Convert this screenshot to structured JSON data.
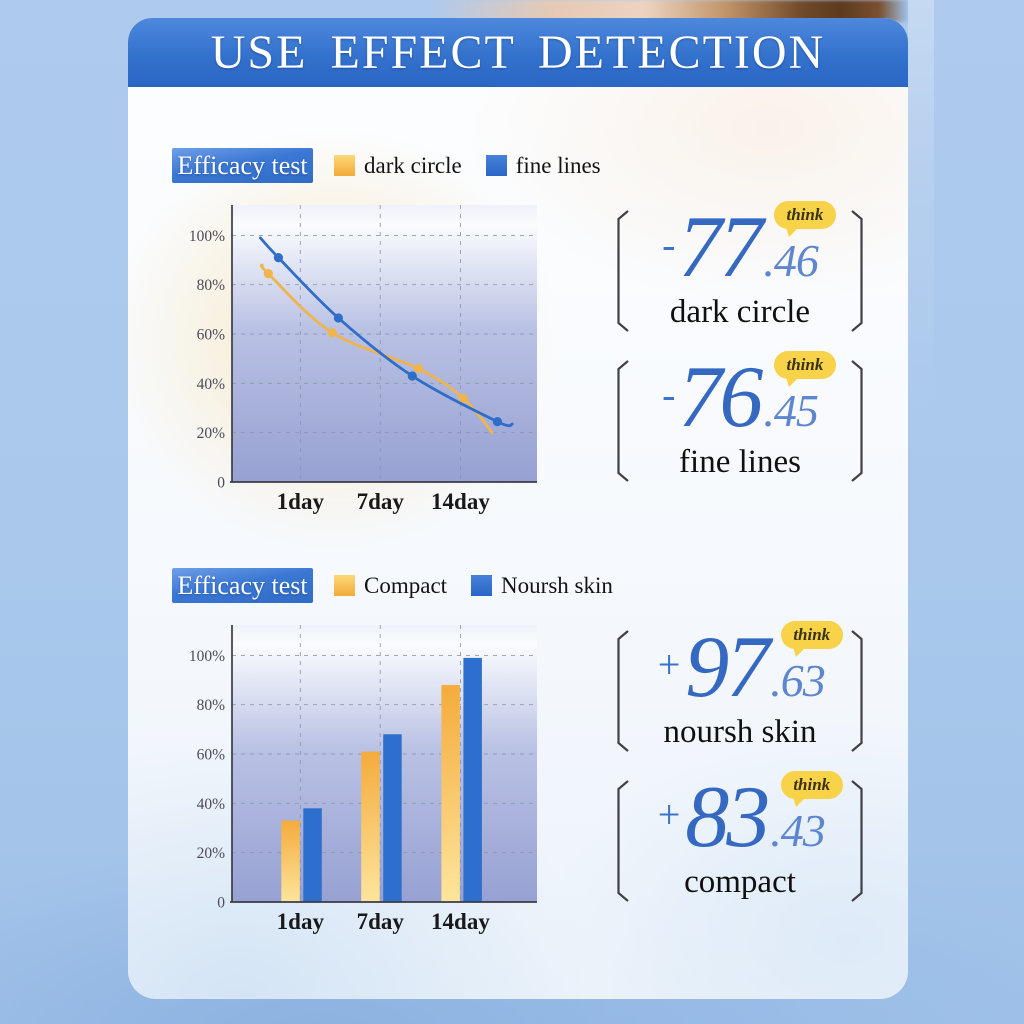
{
  "page_title": "USE EFFECT DETECTION",
  "colors": {
    "banner_blue": "#3372cd",
    "accent_blue": "#2e6ec9",
    "accent_yellow": "#f3b74a",
    "number_blue": "#3568c0",
    "badge_yellow": "#f8d34a",
    "page_bg": "#aac8ec"
  },
  "sections": [
    {
      "badge_label": "Efficacy test",
      "legend": [
        {
          "label": "dark circle",
          "color": "#f3b74a"
        },
        {
          "label": "fine lines",
          "color": "#2e6ec9"
        }
      ],
      "stats": [
        {
          "sign": "-",
          "integer": "77",
          "decimal": ".46",
          "badge": "think",
          "label": "dark circle"
        },
        {
          "sign": "-",
          "integer": "76",
          "decimal": ".45",
          "badge": "think",
          "label": "fine lines"
        }
      ]
    },
    {
      "badge_label": "Efficacy test",
      "legend": [
        {
          "label": "Compact",
          "color": "#f3b74a"
        },
        {
          "label": "Noursh skin",
          "color": "#2e6ec9"
        }
      ],
      "stats": [
        {
          "sign": "+",
          "integer": "97",
          "decimal": ".63",
          "badge": "think",
          "label": "noursh skin"
        },
        {
          "sign": "+",
          "integer": "83",
          "decimal": ".43",
          "badge": "think",
          "label": "compact"
        }
      ]
    }
  ],
  "chart_data": [
    {
      "type": "line",
      "title": "Efficacy test",
      "x_ticks": [
        "1day",
        "7day",
        "14day"
      ],
      "grid_x": [
        0.224,
        0.486,
        0.749
      ],
      "y_ticks": [
        {
          "label": "100%",
          "value": 100
        },
        {
          "label": "80%",
          "value": 80
        },
        {
          "label": "60%",
          "value": 60
        },
        {
          "label": "40%",
          "value": 40
        },
        {
          "label": "20%",
          "value": 20
        },
        {
          "label": "0",
          "value": 0
        }
      ],
      "ylim": [
        0,
        112
      ],
      "grid": "dashed",
      "legend_position": "top",
      "series": [
        {
          "name": "dark circle",
          "color": "#efb44b",
          "points": [
            [
              0.099,
              88,
              0
            ],
            [
              0.119,
              84.5,
              1
            ],
            [
              0.329,
              60.5,
              1
            ],
            [
              0.611,
              46,
              1
            ],
            [
              0.758,
              34,
              1
            ],
            [
              0.853,
              20,
              0
            ]
          ]
        },
        {
          "name": "fine lines",
          "color": "#2e6ec9",
          "points": [
            [
              0.093,
              99,
              0
            ],
            [
              0.152,
              91,
              1
            ],
            [
              0.349,
              66.5,
              1
            ],
            [
              0.591,
              43,
              1
            ],
            [
              0.87,
              24.5,
              1
            ],
            [
              0.919,
              23.5,
              0
            ]
          ]
        }
      ],
      "summary": [
        {
          "change": "-77.46",
          "metric": "dark circle"
        },
        {
          "change": "-76.45",
          "metric": "fine lines"
        }
      ]
    },
    {
      "type": "bar",
      "title": "Efficacy test",
      "categories": [
        "1day",
        "7day",
        "14day"
      ],
      "grid_x": [
        0.224,
        0.486,
        0.749
      ],
      "y_ticks": [
        {
          "label": "100%",
          "value": 100
        },
        {
          "label": "80%",
          "value": 80
        },
        {
          "label": "60%",
          "value": 60
        },
        {
          "label": "40%",
          "value": 40
        },
        {
          "label": "20%",
          "value": 20
        },
        {
          "label": "0",
          "value": 0
        }
      ],
      "ylim": [
        0,
        112
      ],
      "grid": "dashed",
      "bar_width": 18.5,
      "bar_gap": 3,
      "series": [
        {
          "name": "Compact",
          "values": [
            33,
            61,
            88
          ],
          "color_top": "#f4ab3c",
          "color_bottom": "#fde59c"
        },
        {
          "name": "Noursh skin",
          "values": [
            38,
            68,
            99
          ],
          "color": "#2e6fce"
        }
      ],
      "summary": [
        {
          "change": "+97.63",
          "metric": "noursh skin"
        },
        {
          "change": "+83.43",
          "metric": "compact"
        }
      ]
    }
  ]
}
